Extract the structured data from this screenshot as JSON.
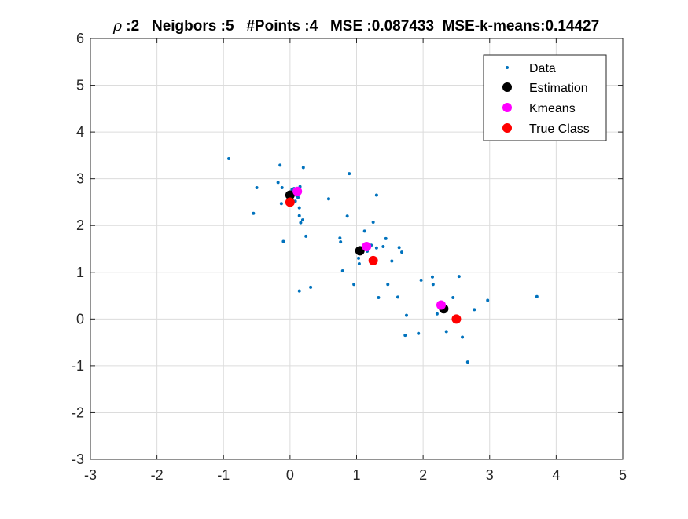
{
  "chart_data": {
    "type": "scatter",
    "title_parts": {
      "rho_symbol": "ρ",
      "rest": " :2   Neigbors :5   #Points :4   MSE :0.087433  MSE-k-means:0.14427"
    },
    "xlabel": "",
    "ylabel": "",
    "xlim": [
      -3,
      5
    ],
    "ylim": [
      -3,
      6
    ],
    "xticks": [
      "-3",
      "-2",
      "-1",
      "0",
      "1",
      "2",
      "3",
      "4",
      "5"
    ],
    "yticks": [
      "-3",
      "-2",
      "-1",
      "0",
      "1",
      "2",
      "3",
      "4",
      "5",
      "6"
    ],
    "grid": true,
    "legend_position": "top-right",
    "series": [
      {
        "name": "Data",
        "marker": "dot",
        "color": "#0072BD",
        "points": [
          [
            -0.92,
            3.43
          ],
          [
            -0.55,
            2.26
          ],
          [
            -0.5,
            2.81
          ],
          [
            -0.18,
            2.92
          ],
          [
            -0.15,
            3.29
          ],
          [
            -0.12,
            2.81
          ],
          [
            -0.1,
            1.66
          ],
          [
            -0.13,
            2.47
          ],
          [
            0.03,
            2.77
          ],
          [
            0.06,
            2.79
          ],
          [
            0.08,
            2.52
          ],
          [
            0.1,
            2.64
          ],
          [
            0.12,
            2.6
          ],
          [
            0.14,
            2.21
          ],
          [
            0.14,
            2.38
          ],
          [
            0.15,
            2.83
          ],
          [
            0.16,
            2.06
          ],
          [
            0.19,
            2.12
          ],
          [
            0.2,
            3.24
          ],
          [
            0.24,
            1.77
          ],
          [
            0.14,
            0.6
          ],
          [
            0.31,
            0.68
          ],
          [
            0.58,
            2.57
          ],
          [
            0.75,
            1.73
          ],
          [
            0.76,
            1.65
          ],
          [
            0.79,
            1.03
          ],
          [
            0.86,
            2.2
          ],
          [
            0.89,
            3.11
          ],
          [
            0.96,
            0.74
          ],
          [
            1.03,
            1.3
          ],
          [
            1.04,
            1.18
          ],
          [
            1.06,
            1.48
          ],
          [
            1.12,
            1.88
          ],
          [
            1.16,
            1.45
          ],
          [
            1.2,
            1.55
          ],
          [
            1.22,
            1.58
          ],
          [
            1.25,
            2.07
          ],
          [
            1.3,
            1.52
          ],
          [
            1.3,
            2.65
          ],
          [
            1.33,
            0.46
          ],
          [
            1.4,
            1.55
          ],
          [
            1.44,
            1.72
          ],
          [
            1.47,
            0.74
          ],
          [
            1.53,
            1.24
          ],
          [
            1.62,
            0.47
          ],
          [
            1.64,
            1.53
          ],
          [
            1.68,
            1.43
          ],
          [
            1.73,
            -0.35
          ],
          [
            1.75,
            0.08
          ],
          [
            1.93,
            -0.31
          ],
          [
            1.97,
            0.83
          ],
          [
            2.14,
            0.9
          ],
          [
            2.15,
            0.74
          ],
          [
            2.21,
            0.11
          ],
          [
            2.29,
            0.28
          ],
          [
            2.35,
            -0.27
          ],
          [
            2.45,
            0.46
          ],
          [
            2.52,
            0.0
          ],
          [
            2.54,
            0.91
          ],
          [
            2.59,
            -0.39
          ],
          [
            2.67,
            -0.92
          ],
          [
            2.77,
            0.2
          ],
          [
            2.97,
            0.4
          ],
          [
            3.71,
            0.48
          ]
        ]
      },
      {
        "name": "Estimation",
        "marker": "circle",
        "color": "#000000",
        "points": [
          [
            0.0,
            2.65
          ],
          [
            1.05,
            1.46
          ],
          [
            2.31,
            0.22
          ]
        ]
      },
      {
        "name": "Kmeans",
        "marker": "circle",
        "color": "#FF00FF",
        "points": [
          [
            0.11,
            2.73
          ],
          [
            1.15,
            1.55
          ],
          [
            2.27,
            0.3
          ]
        ]
      },
      {
        "name": "True Class",
        "marker": "circle",
        "color": "#FF0000",
        "points": [
          [
            0.0,
            2.5
          ],
          [
            1.25,
            1.25
          ],
          [
            2.5,
            0.0
          ]
        ]
      }
    ]
  }
}
